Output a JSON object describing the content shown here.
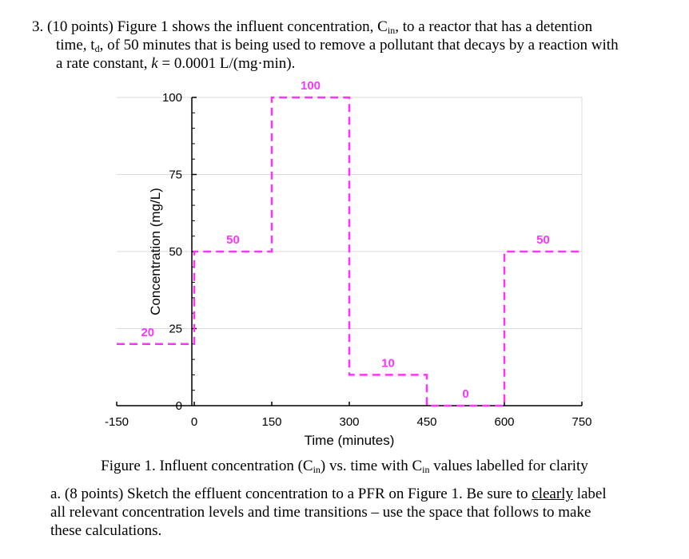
{
  "problem": {
    "line1": "3. (10 points) Figure 1 shows the influent concentration, C",
    "line1_sub": "in",
    "line1_end": ", to a reactor that has a detention",
    "line2_start": "time, t",
    "line2_sub": "d",
    "line2_end": ", of 50 minutes that is being used to remove a pollutant that decays by a reaction with",
    "line3_start": "a rate constant, ",
    "line3_k": "k",
    "line3_end": " = 0.0001 L/(mg·min)."
  },
  "caption": {
    "start": "Figure 1. Influent concentration (C",
    "sub1": "in",
    "middle": ") vs. time with C",
    "sub2": "in",
    "end": " values labelled for clarity"
  },
  "part_a": {
    "line1_start": "a. (8 points) Sketch the effluent concentration to a PFR on Figure 1. Be sure to ",
    "line1_underlined": "clearly",
    "line1_end": " label",
    "line2": "all relevant concentration levels and time transitions – use the space that follows to make",
    "line3": "these calculations."
  },
  "chart_data": {
    "type": "line",
    "xlabel": "Time (minutes)",
    "ylabel": "Concentration (mg/L)",
    "xlim": [
      -150,
      750
    ],
    "ylim": [
      0,
      100
    ],
    "x_ticks": [
      -150,
      0,
      150,
      300,
      450,
      600,
      750
    ],
    "y_ticks": [
      25,
      50,
      75,
      100
    ],
    "y_zero_label": "0",
    "grid": true,
    "series": [
      {
        "color": "#ff33ff",
        "style": "dashed",
        "points": [
          [
            -150,
            20
          ],
          [
            0,
            20
          ],
          [
            0,
            50
          ],
          [
            150,
            50
          ],
          [
            150,
            100
          ],
          [
            300,
            100
          ],
          [
            300,
            10
          ],
          [
            450,
            10
          ],
          [
            450,
            0
          ],
          [
            600,
            0
          ],
          [
            600,
            50
          ],
          [
            750,
            50
          ]
        ]
      }
    ],
    "annotations": [
      {
        "text": "20",
        "x": -90,
        "y": 20
      },
      {
        "text": "50",
        "x": 75,
        "y": 50
      },
      {
        "text": "100",
        "x": 225,
        "y": 100
      },
      {
        "text": "10",
        "x": 375,
        "y": 10
      },
      {
        "text": "0",
        "x": 525,
        "y": 0
      },
      {
        "text": "50",
        "x": 675,
        "y": 50
      }
    ]
  }
}
